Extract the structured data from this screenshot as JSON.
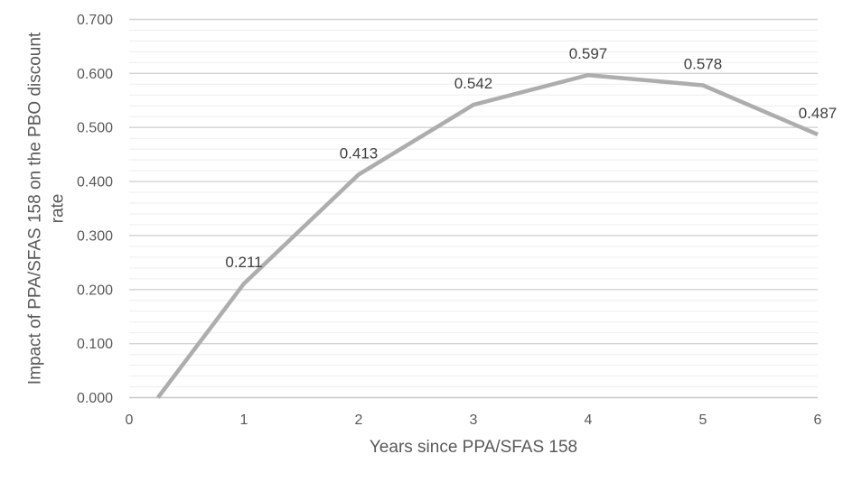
{
  "chart_data": {
    "type": "line",
    "title": "",
    "xlabel": "Years since PPA/SFAS 158",
    "ylabel": "Impact of PPA/SFAS 158 on the PBO discount rate",
    "ylabel_lines": [
      "Impact of PPA/SFAS 158 on the PBO discount",
      "rate"
    ],
    "series": [
      {
        "x": [
          0.25,
          1,
          2,
          3,
          4,
          5,
          6
        ],
        "y": [
          0.0,
          0.211,
          0.413,
          0.542,
          0.597,
          0.578,
          0.487
        ],
        "point_labels": [
          "",
          "0.211",
          "0.413",
          "0.542",
          "0.597",
          "0.578",
          "0.487"
        ]
      }
    ],
    "xlim": [
      0,
      6
    ],
    "ylim": [
      0,
      0.7
    ],
    "x_tick_values": [
      0,
      1,
      2,
      3,
      4,
      5,
      6
    ],
    "x_tick_labels": [
      "0",
      "1",
      "2",
      "3",
      "4",
      "5",
      "6"
    ],
    "y_tick_values": [
      0,
      0.1,
      0.2,
      0.3,
      0.4,
      0.5,
      0.6,
      0.7
    ],
    "y_tick_labels": [
      "0.000",
      "0.100",
      "0.200",
      "0.300",
      "0.400",
      "0.500",
      "0.600",
      "0.700"
    ],
    "y_major_unit": 0.1,
    "y_minor_unit": 0.02,
    "grid": {
      "major": true,
      "minor": true
    },
    "legend": "none",
    "colors": {
      "background": "#ffffff",
      "line": "#adadad",
      "major_grid": "#d2d2d2",
      "minor_grid": "#f0f0f0",
      "axis_line": "#c8c8c8",
      "tick_text": "#595959",
      "axis_title_text": "#595959",
      "data_label_text": "#404040"
    }
  }
}
